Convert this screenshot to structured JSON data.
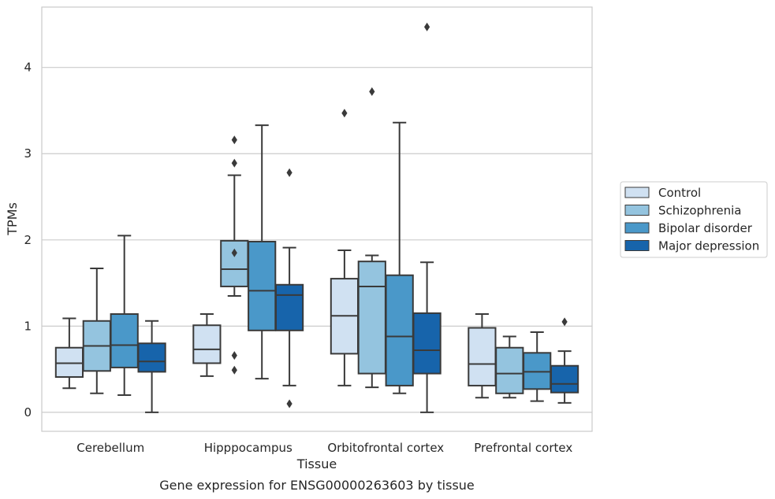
{
  "caption": "Gene expression for ENSG00000263603 by tissue",
  "chart_data": {
    "type": "boxplot",
    "xlabel": "Tissue",
    "ylabel": "TPMs",
    "ylim": [
      -0.22,
      4.7
    ],
    "yticks": [
      0,
      1,
      2,
      3,
      4
    ],
    "grid": "horizontal",
    "legend_placement": "right",
    "categories": [
      "Cerebellum",
      "Hipppocampus",
      "Orbitofrontal cortex",
      "Prefrontal cortex"
    ],
    "series": [
      {
        "name": "Control",
        "color": "#d0e1f2",
        "boxes": [
          {
            "whislo": 0.28,
            "q1": 0.41,
            "med": 0.57,
            "q3": 0.75,
            "whishi": 1.09,
            "fliers": []
          },
          {
            "whislo": 0.42,
            "q1": 0.57,
            "med": 0.73,
            "q3": 1.01,
            "whishi": 1.14,
            "fliers": []
          },
          {
            "whislo": 0.31,
            "q1": 0.68,
            "med": 1.12,
            "q3": 1.55,
            "whishi": 1.88,
            "fliers": [
              3.47
            ]
          },
          {
            "whislo": 0.17,
            "q1": 0.31,
            "med": 0.56,
            "q3": 0.98,
            "whishi": 1.14,
            "fliers": []
          }
        ]
      },
      {
        "name": "Schizophrenia",
        "color": "#94c4df",
        "boxes": [
          {
            "whislo": 0.22,
            "q1": 0.48,
            "med": 0.77,
            "q3": 1.06,
            "whishi": 1.67,
            "fliers": []
          },
          {
            "whislo": 1.35,
            "q1": 1.46,
            "med": 1.66,
            "q3": 1.99,
            "whishi": 2.75,
            "fliers": [
              1.85,
              2.89,
              3.16,
              0.66,
              0.49
            ]
          },
          {
            "whislo": 0.29,
            "q1": 0.45,
            "med": 1.46,
            "q3": 1.75,
            "whishi": 1.82,
            "fliers": [
              3.72
            ]
          },
          {
            "whislo": 0.17,
            "q1": 0.22,
            "med": 0.45,
            "q3": 0.75,
            "whishi": 0.88,
            "fliers": []
          }
        ]
      },
      {
        "name": "Bipolar disorder",
        "color": "#4a98c9",
        "boxes": [
          {
            "whislo": 0.2,
            "q1": 0.52,
            "med": 0.78,
            "q3": 1.14,
            "whishi": 2.05,
            "fliers": []
          },
          {
            "whislo": 0.39,
            "q1": 0.95,
            "med": 1.41,
            "q3": 1.98,
            "whishi": 3.33,
            "fliers": []
          },
          {
            "whislo": 0.22,
            "q1": 0.31,
            "med": 0.88,
            "q3": 1.59,
            "whishi": 3.36,
            "fliers": []
          },
          {
            "whislo": 0.13,
            "q1": 0.27,
            "med": 0.47,
            "q3": 0.69,
            "whishi": 0.93,
            "fliers": []
          }
        ]
      },
      {
        "name": "Major depression",
        "color": "#1764ab",
        "boxes": [
          {
            "whislo": 0.0,
            "q1": 0.47,
            "med": 0.59,
            "q3": 0.8,
            "whishi": 1.06,
            "fliers": []
          },
          {
            "whislo": 0.31,
            "q1": 0.95,
            "med": 1.36,
            "q3": 1.48,
            "whishi": 1.91,
            "fliers": [
              2.78,
              0.1
            ]
          },
          {
            "whislo": 0.0,
            "q1": 0.45,
            "med": 0.72,
            "q3": 1.15,
            "whishi": 1.74,
            "fliers": [
              4.47
            ]
          },
          {
            "whislo": 0.11,
            "q1": 0.23,
            "med": 0.33,
            "q3": 0.54,
            "whishi": 0.71,
            "fliers": [
              1.05
            ]
          }
        ]
      }
    ]
  }
}
